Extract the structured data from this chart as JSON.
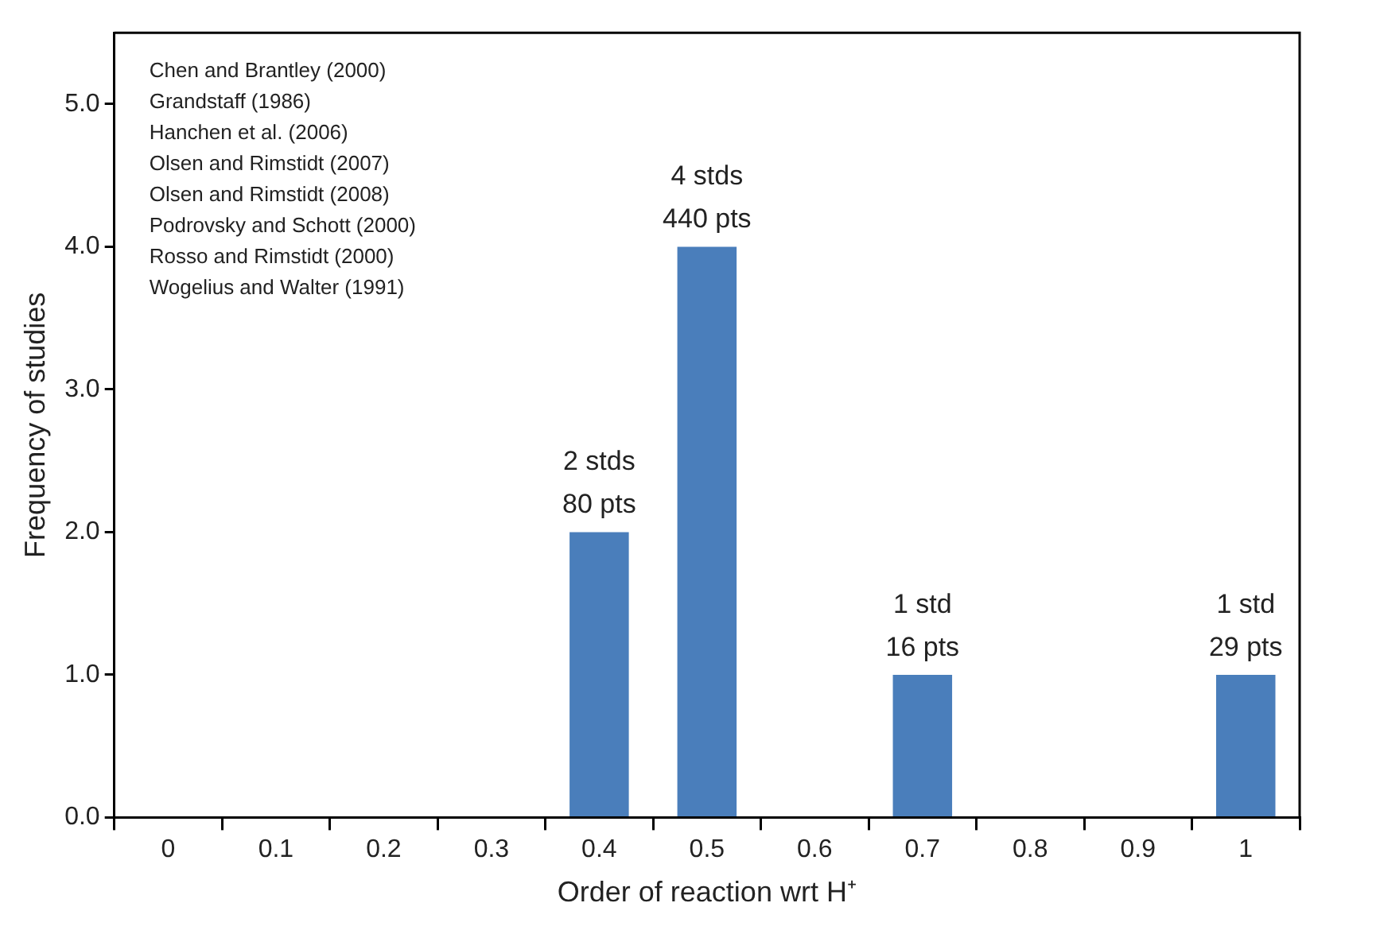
{
  "chart_data": {
    "type": "bar",
    "xlabel": "Order of reaction wrt H⁺",
    "ylabel": "Frequency of studies",
    "categories": [
      "0",
      "0.1",
      "0.2",
      "0.3",
      "0.4",
      "0.5",
      "0.6",
      "0.7",
      "0.8",
      "0.9",
      "1"
    ],
    "values": [
      0,
      0,
      0,
      0,
      2,
      4,
      0,
      1,
      0,
      0,
      1
    ],
    "value_labels": [
      null,
      null,
      null,
      null,
      "2 stds\n80 pts",
      "4 stds\n440 pts",
      null,
      "1 std\n16 pts",
      null,
      null,
      "1 std\n29 pts"
    ],
    "color": "#4a7ebb",
    "ylim": [
      0,
      5.5
    ],
    "yticks": [
      {
        "value": 0,
        "label": "0.0"
      },
      {
        "value": 1,
        "label": "1.0"
      },
      {
        "value": 2,
        "label": "2.0"
      },
      {
        "value": 3,
        "label": "3.0"
      },
      {
        "value": 4,
        "label": "4.0"
      },
      {
        "value": 5,
        "label": "5.0"
      }
    ],
    "grid": false,
    "legend": false,
    "annotations": [
      "Chen and Brantley (2000)",
      "Grandstaff (1986)",
      "Hanchen et al. (2006)",
      "Olsen and Rimstidt (2007)",
      "Olsen and Rimstidt (2008)",
      "Podrovsky and Schott (2000)",
      "Rosso and Rimstidt (2000)",
      "Wogelius and Walter (1991)"
    ]
  }
}
